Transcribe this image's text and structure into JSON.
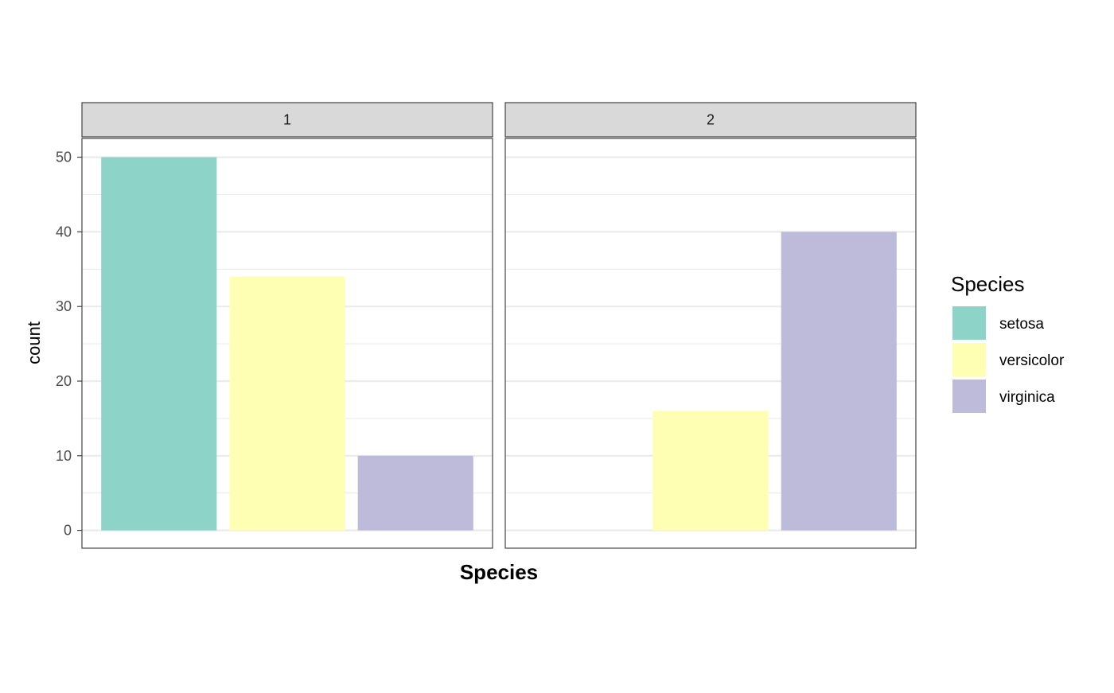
{
  "chart_data": {
    "type": "bar",
    "facet_by": [
      "1",
      "2"
    ],
    "categories": [
      "setosa",
      "versicolor",
      "virginica"
    ],
    "facets": [
      {
        "label": "1",
        "values": [
          50,
          34,
          10
        ]
      },
      {
        "label": "2",
        "values": [
          0,
          16,
          40
        ]
      }
    ],
    "xlabel": "Species",
    "ylabel": "count",
    "ylim": [
      0,
      54.8
    ],
    "yticks": [
      0,
      10,
      20,
      30,
      40,
      50
    ],
    "grid": true,
    "legend": {
      "title": "Species",
      "position": "right",
      "entries": [
        "setosa",
        "versicolor",
        "virginica"
      ]
    },
    "colors": {
      "setosa": "#8dd3c7",
      "versicolor": "#ffffb3",
      "virginica": "#bebada"
    }
  }
}
